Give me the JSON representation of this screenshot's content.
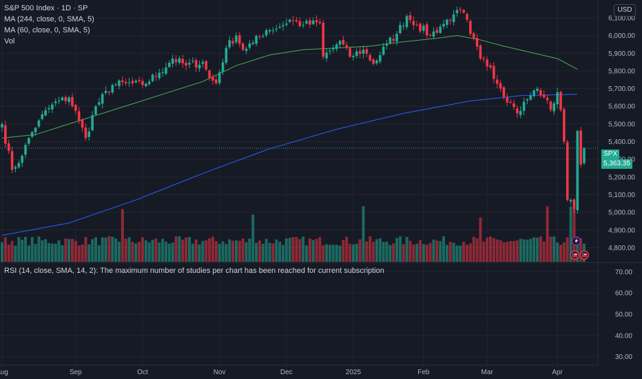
{
  "header": {
    "title": "S&P 500 Index · 1D · SP",
    "ma1": "MA (244, close, 0, SMA, 5)",
    "ma2": "MA (60, close, 0, SMA, 5)",
    "vol": "Vol",
    "currency_button": "USD",
    "rsi_note": "RSI (14, close, SMA, 14, 2): The maximum number of studies per chart has been reached for current subscription"
  },
  "last_price": {
    "symbol": "SPX",
    "value": "5,363.35"
  },
  "colors": {
    "up": "#22ab94",
    "down": "#f23645",
    "ma244": "#2962ff",
    "ma60": "#4caf50",
    "background": "#161a25",
    "grid": "#232632",
    "axis_text": "#b2b5be"
  },
  "chart_data": [
    {
      "type": "candlestick",
      "title": "S&P 500 Index · 1D · SP",
      "x_labels": [
        {
          "label": "Aug",
          "day": 0
        },
        {
          "label": "Sep",
          "day": 22
        },
        {
          "label": "Oct",
          "day": 42
        },
        {
          "label": "Nov",
          "day": 65
        },
        {
          "label": "Dec",
          "day": 85
        },
        {
          "label": "2025",
          "day": 105
        },
        {
          "label": "Feb",
          "day": 126
        },
        {
          "label": "Mar",
          "day": 145
        },
        {
          "label": "Apr",
          "day": 166
        }
      ],
      "y_ticks": [
        4800,
        4900,
        5000,
        5100,
        5200,
        5300,
        5400,
        5500,
        5600,
        5700,
        5800,
        5900,
        6000,
        6100
      ],
      "y_tick_labels": [
        "4,800.00",
        "4,900.00",
        "5,000.00",
        "5,100.00",
        "5,200.00",
        "5,300.00",
        "5,400.00",
        "5,500.00",
        "5,600.00",
        "5,700.00",
        "5,800.00",
        "5,900.00",
        "6,000.00",
        "6,100.00"
      ],
      "ylim": [
        4720,
        6170
      ],
      "last_price": 5363.35,
      "anchors": [
        {
          "day": 0,
          "close": 5500
        },
        {
          "day": 3,
          "close": 5240
        },
        {
          "day": 6,
          "close": 5320
        },
        {
          "day": 8,
          "close": 5420
        },
        {
          "day": 11,
          "close": 5520
        },
        {
          "day": 15,
          "close": 5610
        },
        {
          "day": 20,
          "close": 5650
        },
        {
          "day": 23,
          "close": 5520
        },
        {
          "day": 25,
          "close": 5420
        },
        {
          "day": 28,
          "close": 5600
        },
        {
          "day": 33,
          "close": 5720
        },
        {
          "day": 37,
          "close": 5730
        },
        {
          "day": 42,
          "close": 5720
        },
        {
          "day": 47,
          "close": 5790
        },
        {
          "day": 51,
          "close": 5870
        },
        {
          "day": 55,
          "close": 5830
        },
        {
          "day": 60,
          "close": 5850
        },
        {
          "day": 62,
          "close": 5760
        },
        {
          "day": 64,
          "close": 5730
        },
        {
          "day": 67,
          "close": 5930
        },
        {
          "day": 70,
          "close": 6000
        },
        {
          "day": 72,
          "close": 5920
        },
        {
          "day": 75,
          "close": 5960
        },
        {
          "day": 79,
          "close": 6030
        },
        {
          "day": 83,
          "close": 6050
        },
        {
          "day": 86,
          "close": 6090
        },
        {
          "day": 90,
          "close": 6060
        },
        {
          "day": 95,
          "close": 6070
        },
        {
          "day": 96,
          "close": 5880
        },
        {
          "day": 99,
          "close": 5930
        },
        {
          "day": 101,
          "close": 5970
        },
        {
          "day": 104,
          "close": 5880
        },
        {
          "day": 108,
          "close": 5920
        },
        {
          "day": 111,
          "close": 5840
        },
        {
          "day": 115,
          "close": 5950
        },
        {
          "day": 118,
          "close": 6010
        },
        {
          "day": 121,
          "close": 6110
        },
        {
          "day": 124,
          "close": 6060
        },
        {
          "day": 128,
          "close": 6000
        },
        {
          "day": 131,
          "close": 6050
        },
        {
          "day": 135,
          "close": 6120
        },
        {
          "day": 138,
          "close": 6130
        },
        {
          "day": 140,
          "close": 6010
        },
        {
          "day": 143,
          "close": 5870
        },
        {
          "day": 146,
          "close": 5820
        },
        {
          "day": 149,
          "close": 5700
        },
        {
          "day": 152,
          "close": 5620
        },
        {
          "day": 154,
          "close": 5560
        },
        {
          "day": 157,
          "close": 5640
        },
        {
          "day": 160,
          "close": 5700
        },
        {
          "day": 162,
          "close": 5650
        },
        {
          "day": 164,
          "close": 5580
        },
        {
          "day": 166,
          "close": 5680
        },
        {
          "day": 167,
          "close": 5580
        },
        {
          "day": 168,
          "close": 5400
        },
        {
          "day": 169,
          "close": 5070
        },
        {
          "day": 170,
          "close": 5070
        },
        {
          "day": 171,
          "close": 5020
        },
        {
          "day": 172,
          "close": 5460
        },
        {
          "day": 173,
          "close": 5270
        },
        {
          "day": 174,
          "close": 5363.35
        }
      ],
      "ma60": [
        {
          "day": 0,
          "value": 5420
        },
        {
          "day": 10,
          "value": 5440
        },
        {
          "day": 20,
          "value": 5500
        },
        {
          "day": 30,
          "value": 5560
        },
        {
          "day": 40,
          "value": 5620
        },
        {
          "day": 50,
          "value": 5680
        },
        {
          "day": 60,
          "value": 5740
        },
        {
          "day": 70,
          "value": 5830
        },
        {
          "day": 80,
          "value": 5890
        },
        {
          "day": 90,
          "value": 5920
        },
        {
          "day": 100,
          "value": 5930
        },
        {
          "day": 110,
          "value": 5940
        },
        {
          "day": 120,
          "value": 5965
        },
        {
          "day": 130,
          "value": 5985
        },
        {
          "day": 136,
          "value": 6000
        },
        {
          "day": 142,
          "value": 5980
        },
        {
          "day": 150,
          "value": 5940
        },
        {
          "day": 158,
          "value": 5905
        },
        {
          "day": 166,
          "value": 5870
        },
        {
          "day": 172,
          "value": 5810
        }
      ],
      "ma244": [
        {
          "day": 0,
          "value": 4870
        },
        {
          "day": 20,
          "value": 4940
        },
        {
          "day": 40,
          "value": 5070
        },
        {
          "day": 60,
          "value": 5220
        },
        {
          "day": 80,
          "value": 5360
        },
        {
          "day": 100,
          "value": 5470
        },
        {
          "day": 120,
          "value": 5560
        },
        {
          "day": 140,
          "value": 5630
        },
        {
          "day": 155,
          "value": 5660
        },
        {
          "day": 172,
          "value": 5668
        }
      ],
      "volume_spikes": [
        {
          "day": 36,
          "level": 0.95
        },
        {
          "day": 75,
          "level": 0.85
        },
        {
          "day": 108,
          "level": 1.0
        },
        {
          "day": 143,
          "level": 0.8
        },
        {
          "day": 163,
          "level": 1.0
        },
        {
          "day": 170,
          "level": 1.0
        },
        {
          "day": 171,
          "level": 0.95
        }
      ]
    },
    {
      "type": "line",
      "title": "RSI (14, close, SMA, 14, 2)",
      "y_ticks": [
        30,
        40,
        50,
        60,
        70
      ],
      "y_tick_labels": [
        "30.00",
        "40.00",
        "50.00",
        "60.00",
        "70.00"
      ],
      "ylim": [
        26,
        74
      ]
    }
  ]
}
